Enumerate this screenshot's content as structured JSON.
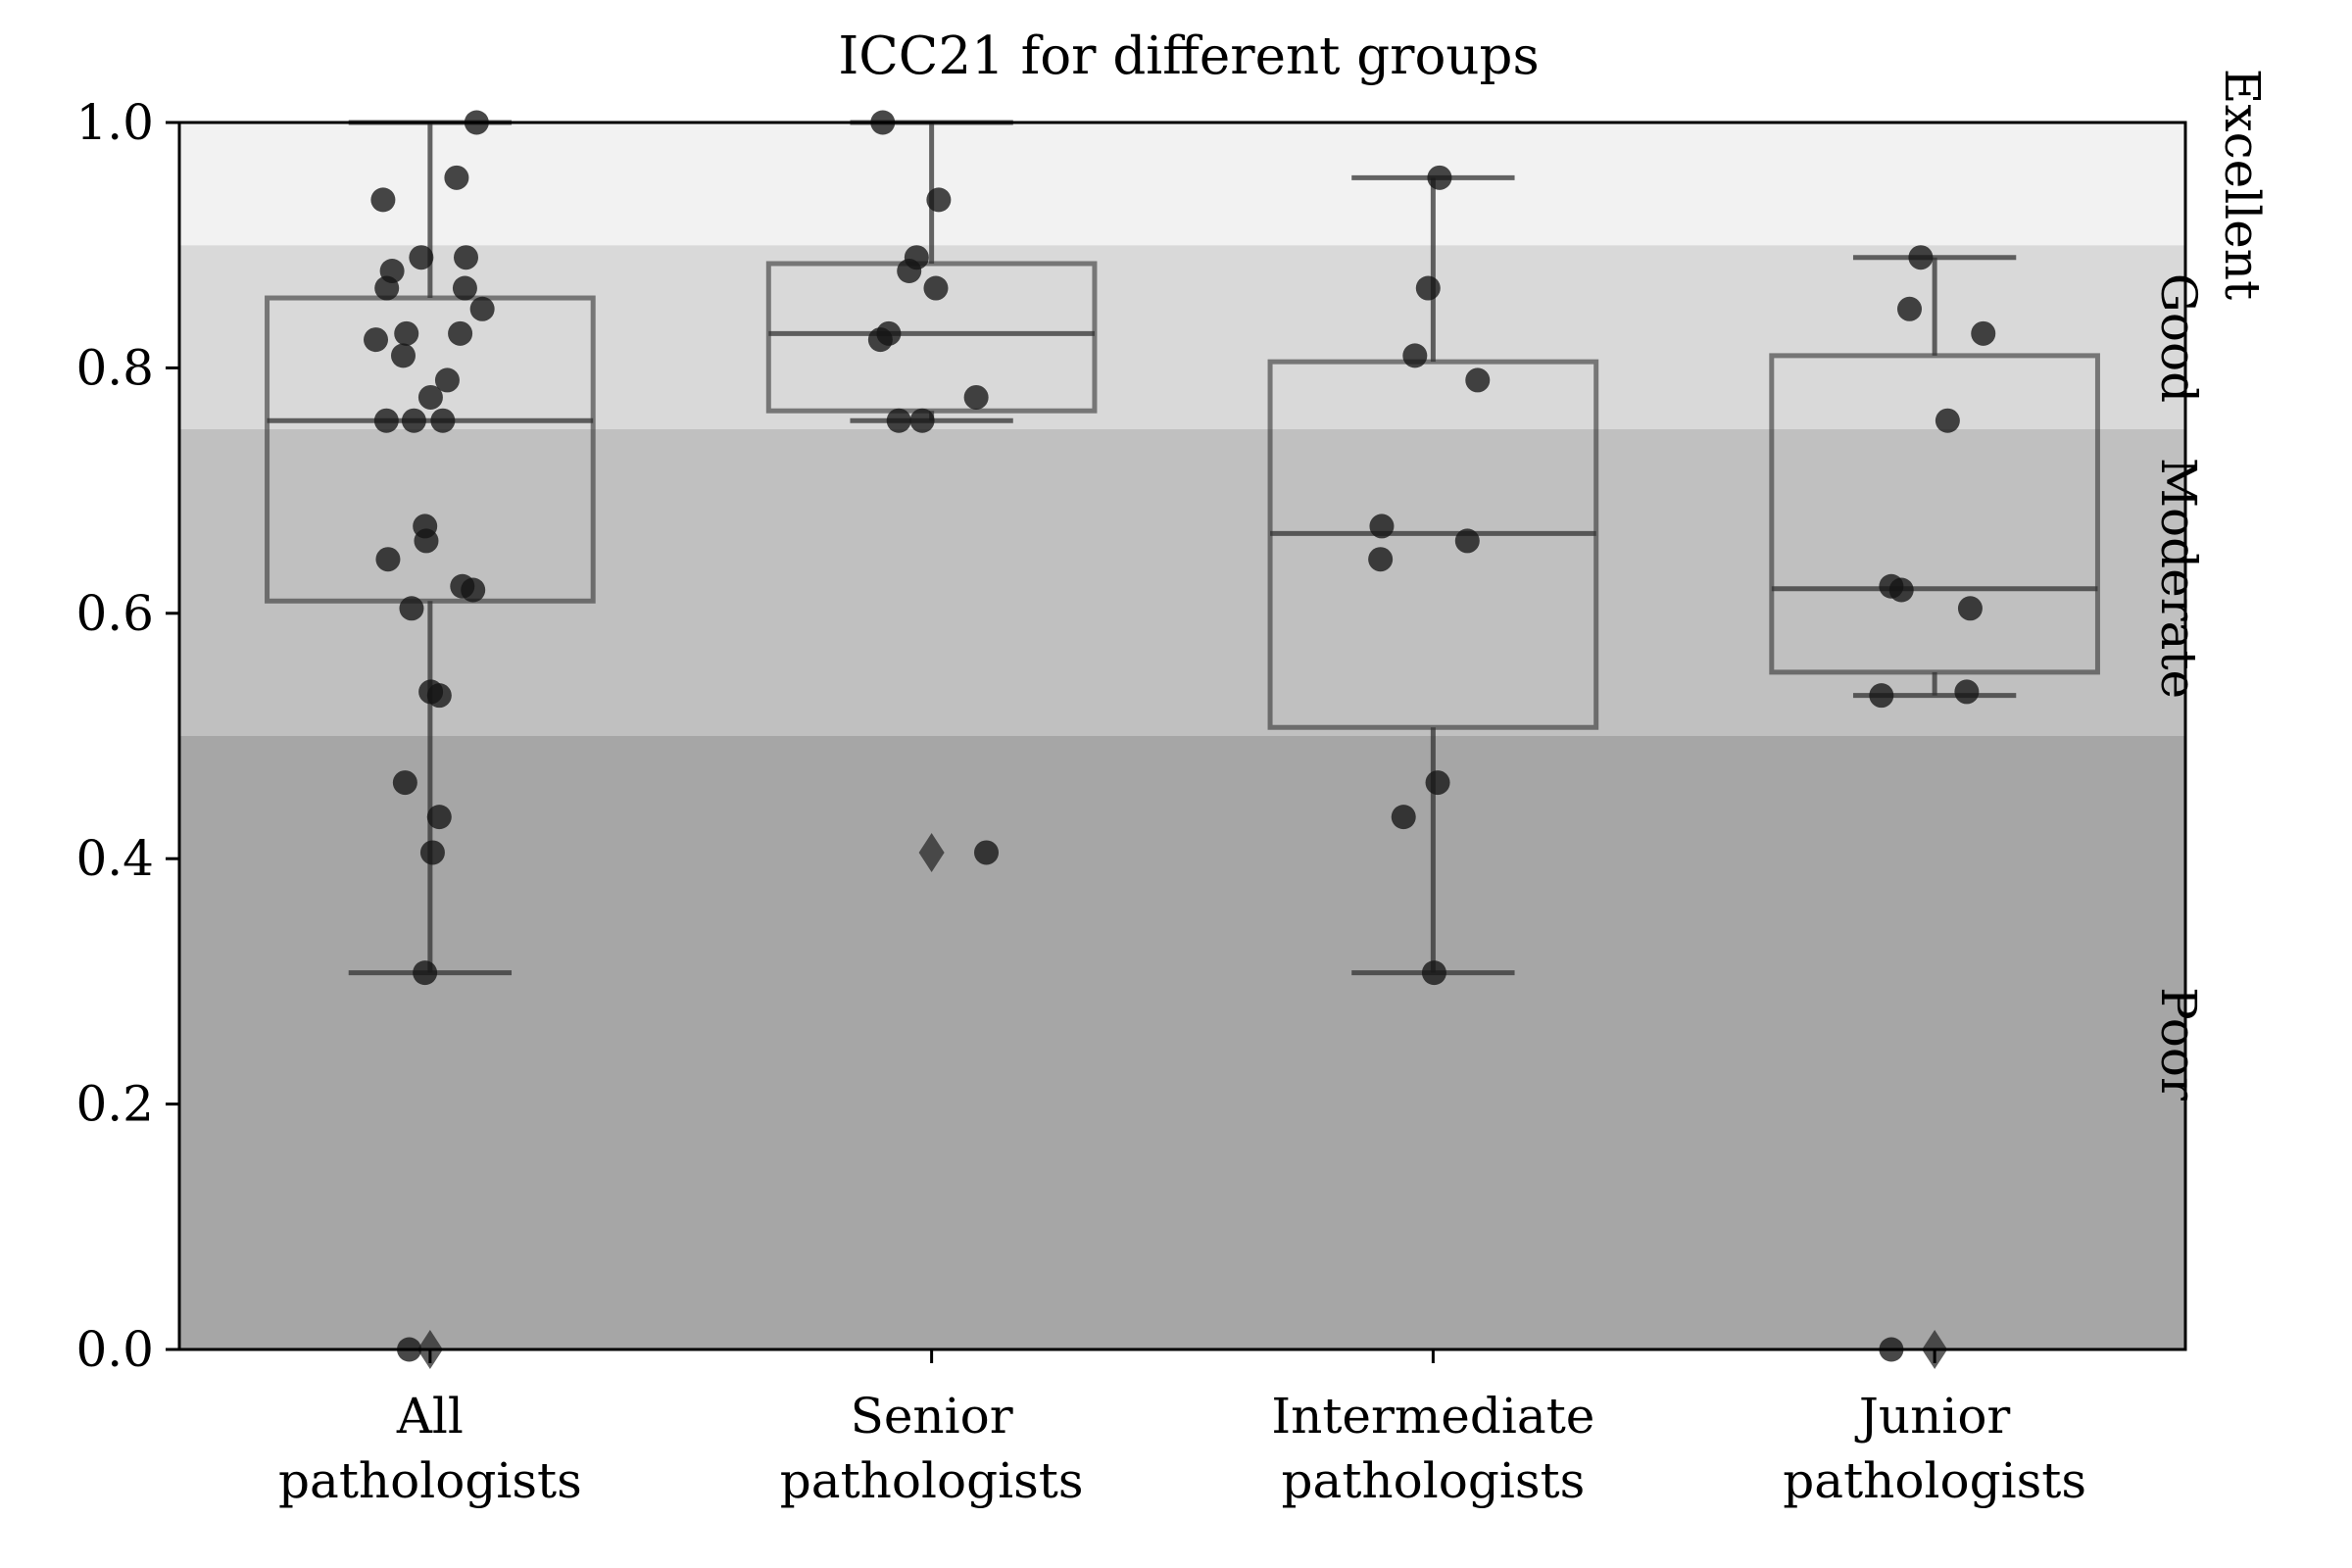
{
  "chart_data": {
    "type": "box",
    "title": "ICC21 for different groups",
    "xlabel": "",
    "ylabel": "",
    "ylim": [
      0,
      1.0
    ],
    "yticks": [
      "0.0",
      "0.2",
      "0.4",
      "0.6",
      "0.8",
      "1.0"
    ],
    "yticks_values": [
      0,
      0.2,
      0.4,
      0.6,
      0.8,
      1.0
    ],
    "grid": false,
    "bands": [
      {
        "label": "Poor",
        "from": 0.0,
        "to": 0.5,
        "color": "#a6a6a6"
      },
      {
        "label": "Moderate",
        "from": 0.5,
        "to": 0.75,
        "color": "#c0c0c0"
      },
      {
        "label": "Good",
        "from": 0.75,
        "to": 0.9,
        "color": "#d9d9d9"
      },
      {
        "label": "Excellent",
        "from": 0.9,
        "to": 1.0,
        "color": "#f2f2f2"
      }
    ],
    "categories": [
      {
        "line1": "All",
        "line2": "pathologists"
      },
      {
        "line1": "Senior",
        "line2": "pathologists"
      },
      {
        "line1": "Intermediate",
        "line2": "pathologists"
      },
      {
        "line1": "Junior",
        "line2": "pathologists"
      }
    ],
    "boxes": [
      {
        "q1": 0.61,
        "median": 0.757,
        "q3": 0.857,
        "whisker_low": 0.307,
        "whisker_high": 1.0,
        "outliers": [
          0.0
        ]
      },
      {
        "q1": 0.765,
        "median": 0.828,
        "q3": 0.885,
        "whisker_low": 0.757,
        "whisker_high": 1.0,
        "outliers": [
          0.405
        ]
      },
      {
        "q1": 0.507,
        "median": 0.665,
        "q3": 0.805,
        "whisker_low": 0.307,
        "whisker_high": 0.955,
        "outliers": []
      },
      {
        "q1": 0.552,
        "median": 0.62,
        "q3": 0.81,
        "whisker_low": 0.533,
        "whisker_high": 0.89,
        "outliers": [
          0.0
        ]
      }
    ],
    "points": [
      [
        1.0,
        0.955,
        0.937,
        0.89,
        0.89,
        0.879,
        0.865,
        0.865,
        0.848,
        0.828,
        0.828,
        0.823,
        0.81,
        0.79,
        0.776,
        0.757,
        0.757,
        0.757,
        0.671,
        0.659,
        0.644,
        0.622,
        0.619,
        0.604,
        0.536,
        0.533,
        0.462,
        0.434,
        0.405,
        0.307,
        0.0
      ],
      [
        1.0,
        0.937,
        0.89,
        0.879,
        0.865,
        0.828,
        0.823,
        0.776,
        0.757,
        0.757,
        0.405
      ],
      [
        0.955,
        0.865,
        0.81,
        0.79,
        0.671,
        0.659,
        0.644,
        0.462,
        0.434,
        0.307
      ],
      [
        0.89,
        0.848,
        0.828,
        0.757,
        0.622,
        0.619,
        0.604,
        0.536,
        0.533,
        0.0
      ]
    ]
  }
}
